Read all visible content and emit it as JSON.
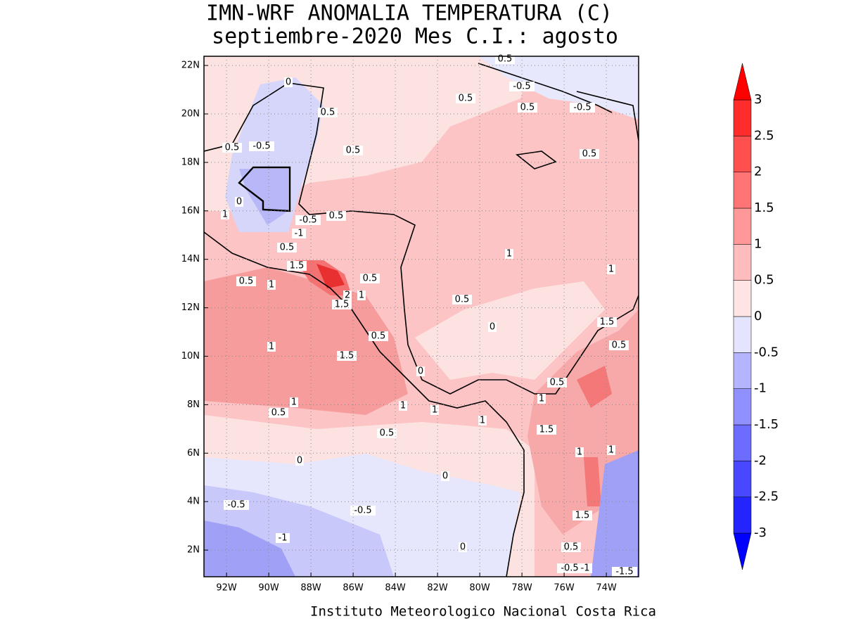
{
  "map": {
    "title": "IMN-WRF  ANOMALIA TEMPERATURA (C)",
    "subtitle": "septiembre-2020 Mes C.I.: agosto",
    "footer": "Instituto Meteorologico Nacional Costa Rica",
    "lonlim": [
      -93.07,
      -72.47
    ],
    "latlim": [
      0.9,
      22.38
    ],
    "xticks": [
      {
        "value": -92,
        "label": "92W"
      },
      {
        "value": -90,
        "label": "90W"
      },
      {
        "value": -88,
        "label": "88W"
      },
      {
        "value": -86,
        "label": "86W"
      },
      {
        "value": -84,
        "label": "84W"
      },
      {
        "value": -82,
        "label": "82W"
      },
      {
        "value": -80,
        "label": "80W"
      },
      {
        "value": -78,
        "label": "78W"
      },
      {
        "value": -76,
        "label": "76W"
      },
      {
        "value": -74,
        "label": "74W"
      }
    ],
    "yticks": [
      {
        "value": 2,
        "label": "2N"
      },
      {
        "value": 4,
        "label": "4N"
      },
      {
        "value": 6,
        "label": "6N"
      },
      {
        "value": 8,
        "label": "8N"
      },
      {
        "value": 10,
        "label": "10N"
      },
      {
        "value": 12,
        "label": "12N"
      },
      {
        "value": 14,
        "label": "14N"
      },
      {
        "value": 16,
        "label": "16N"
      },
      {
        "value": 18,
        "label": "18N"
      },
      {
        "value": 20,
        "label": "20N"
      },
      {
        "value": 22,
        "label": "22N"
      }
    ],
    "grid": true,
    "colorbar": {
      "levels": [
        -3,
        -2.5,
        -2,
        -1.5,
        -1,
        -0.5,
        0,
        0.5,
        1,
        1.5,
        2,
        2.5,
        3
      ],
      "colors": [
        "#0000ff",
        "#2424ff",
        "#4848ff",
        "#6c6cff",
        "#9090ff",
        "#b4b4ff",
        "#e4e4ff",
        "#ffe4e4",
        "#ffbcbc",
        "#ff9898",
        "#ff7474",
        "#ff5050",
        "#ff2c2c",
        "#ff0000"
      ]
    },
    "contour_labels": [
      0,
      0.5,
      0.5,
      -0.5,
      0.5,
      0.5,
      0.5,
      -0.5,
      0.5,
      -0.5,
      0.5,
      0,
      1,
      -0.5,
      0.5,
      -1,
      0.5,
      1.5,
      0.5,
      1,
      0.5,
      2,
      1.5,
      1,
      1,
      1,
      0.5,
      0,
      0.5,
      1.5,
      0.5,
      1,
      1.5,
      0.5,
      1,
      1,
      0.5,
      1,
      1,
      1,
      0.5,
      1.5,
      1,
      1,
      0,
      0,
      -0.5,
      -0.5,
      -1,
      1.5,
      0.5,
      -0.5,
      -1,
      -1.5,
      0,
      0
    ]
  }
}
